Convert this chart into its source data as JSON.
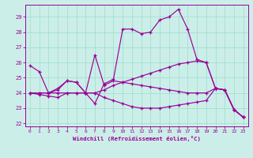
{
  "background_color": "#cceee8",
  "grid_color": "#99ddcc",
  "line_color": "#990099",
  "xlim": [
    -0.5,
    23.5
  ],
  "ylim": [
    21.8,
    29.8
  ],
  "xticks": [
    0,
    1,
    2,
    3,
    4,
    5,
    6,
    7,
    8,
    9,
    10,
    11,
    12,
    13,
    14,
    15,
    16,
    17,
    18,
    19,
    20,
    21,
    22,
    23
  ],
  "yticks": [
    22,
    23,
    24,
    25,
    26,
    27,
    28,
    29
  ],
  "xlabel": "Windchill (Refroidissement éolien,°C)",
  "line_a_x": [
    0,
    1,
    2,
    3,
    4,
    5,
    6,
    7,
    8,
    9,
    10,
    11,
    12,
    13,
    14,
    15,
    16,
    17,
    18,
    19,
    20,
    21,
    22,
    23
  ],
  "line_a_y": [
    25.8,
    25.4,
    24.0,
    24.3,
    24.8,
    24.7,
    24.0,
    23.3,
    24.6,
    24.9,
    28.2,
    28.2,
    27.9,
    28.0,
    28.8,
    29.0,
    29.5,
    28.2,
    26.2,
    26.0,
    24.3,
    24.2,
    22.9,
    22.4
  ],
  "line_b_x": [
    0,
    1,
    2,
    3,
    4,
    5,
    6,
    7,
    8,
    9,
    10,
    11,
    12,
    13,
    14,
    15,
    16,
    17,
    18,
    19,
    20,
    21,
    22,
    23
  ],
  "line_b_y": [
    24.0,
    24.0,
    24.0,
    24.2,
    24.8,
    24.7,
    24.0,
    26.5,
    24.5,
    24.8,
    24.7,
    24.6,
    24.5,
    24.4,
    24.3,
    24.2,
    24.1,
    24.0,
    24.0,
    24.0,
    24.3,
    24.2,
    22.9,
    22.4
  ],
  "line_c_x": [
    0,
    1,
    2,
    3,
    4,
    5,
    6,
    7,
    8,
    9,
    10,
    11,
    12,
    13,
    14,
    15,
    16,
    17,
    18,
    19,
    20,
    21,
    22,
    23
  ],
  "line_c_y": [
    24.0,
    24.0,
    24.0,
    24.0,
    24.0,
    24.0,
    24.0,
    24.0,
    24.2,
    24.5,
    24.7,
    24.9,
    25.1,
    25.3,
    25.5,
    25.7,
    25.9,
    26.0,
    26.1,
    26.0,
    24.3,
    24.2,
    22.9,
    22.4
  ],
  "line_d_x": [
    0,
    1,
    2,
    3,
    4,
    5,
    6,
    7,
    8,
    9,
    10,
    11,
    12,
    13,
    14,
    15,
    16,
    17,
    18,
    19,
    20,
    21,
    22,
    23
  ],
  "line_d_y": [
    24.0,
    23.9,
    23.8,
    23.7,
    24.0,
    24.0,
    24.0,
    24.0,
    23.7,
    23.5,
    23.3,
    23.1,
    23.0,
    23.0,
    23.0,
    23.1,
    23.2,
    23.3,
    23.4,
    23.5,
    24.3,
    24.2,
    22.9,
    22.4
  ]
}
